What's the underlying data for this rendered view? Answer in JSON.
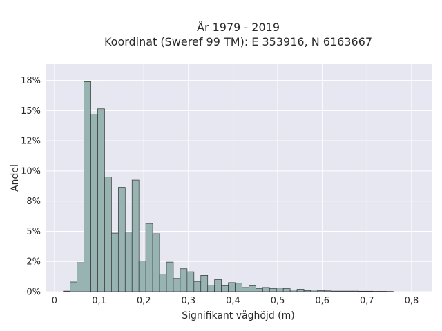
{
  "chart_data": {
    "type": "histogram",
    "title": [
      "År 1979 - 2019",
      "Koordinat (Sweref 99 TM): E 353916, N 6163667"
    ],
    "xlabel": "Signifikant våghöjd (m)",
    "ylabel": "Andel",
    "xlim": [
      -0.02,
      0.845
    ],
    "ylim": [
      0,
      0.1885
    ],
    "x_ticks": [
      {
        "value": 0,
        "label": "0"
      },
      {
        "value": 0.1,
        "label": "0,1"
      },
      {
        "value": 0.2,
        "label": "0,2"
      },
      {
        "value": 0.3,
        "label": "0,3"
      },
      {
        "value": 0.4,
        "label": "0,4"
      },
      {
        "value": 0.5,
        "label": "0,5"
      },
      {
        "value": 0.6,
        "label": "0,6"
      },
      {
        "value": 0.7,
        "label": "0,7"
      },
      {
        "value": 0.8,
        "label": "0,8"
      }
    ],
    "y_ticks": [
      {
        "value": 0,
        "label": "0%"
      },
      {
        "value": 0.025,
        "label": "2%"
      },
      {
        "value": 0.05,
        "label": "5%"
      },
      {
        "value": 0.075,
        "label": "8%"
      },
      {
        "value": 0.1,
        "label": "10%"
      },
      {
        "value": 0.125,
        "label": "12%"
      },
      {
        "value": 0.15,
        "label": "15%"
      },
      {
        "value": 0.175,
        "label": "18%"
      }
    ],
    "bin_width": 0.0154,
    "bin_starts": [
      0.0198,
      0.0352,
      0.0506,
      0.066,
      0.0814,
      0.0968,
      0.1122,
      0.1276,
      0.143,
      0.1584,
      0.1738,
      0.1892,
      0.2046,
      0.22,
      0.2354,
      0.2508,
      0.2662,
      0.2816,
      0.297,
      0.3124,
      0.3278,
      0.3432,
      0.3586,
      0.374,
      0.3894,
      0.4048,
      0.4202,
      0.4356,
      0.451,
      0.4664,
      0.4818,
      0.4972,
      0.5126,
      0.528,
      0.5434,
      0.5588,
      0.5742,
      0.5896,
      0.605,
      0.6204,
      0.6358,
      0.6512,
      0.6666,
      0.682,
      0.6974,
      0.7128,
      0.7282,
      0.7436
    ],
    "values": [
      0.0005,
      0.008,
      0.024,
      0.174,
      0.147,
      0.1515,
      0.095,
      0.0485,
      0.0865,
      0.0495,
      0.0925,
      0.0255,
      0.0565,
      0.048,
      0.0145,
      0.0245,
      0.011,
      0.019,
      0.0165,
      0.0085,
      0.0135,
      0.0055,
      0.01,
      0.005,
      0.0075,
      0.007,
      0.0035,
      0.005,
      0.0025,
      0.0035,
      0.0025,
      0.003,
      0.0025,
      0.0015,
      0.002,
      0.001,
      0.0015,
      0.001,
      0.0007,
      0.0005,
      0.0005,
      0.0005,
      0.0005,
      0.0004,
      0.0004,
      0.0003,
      0.0003,
      0.0002
    ],
    "colors": {
      "bar_fill": "#98b4b2",
      "bar_stroke": "#333333",
      "plot_bg": "#e6e7f0",
      "grid": "#ffffff"
    },
    "grid": true
  }
}
